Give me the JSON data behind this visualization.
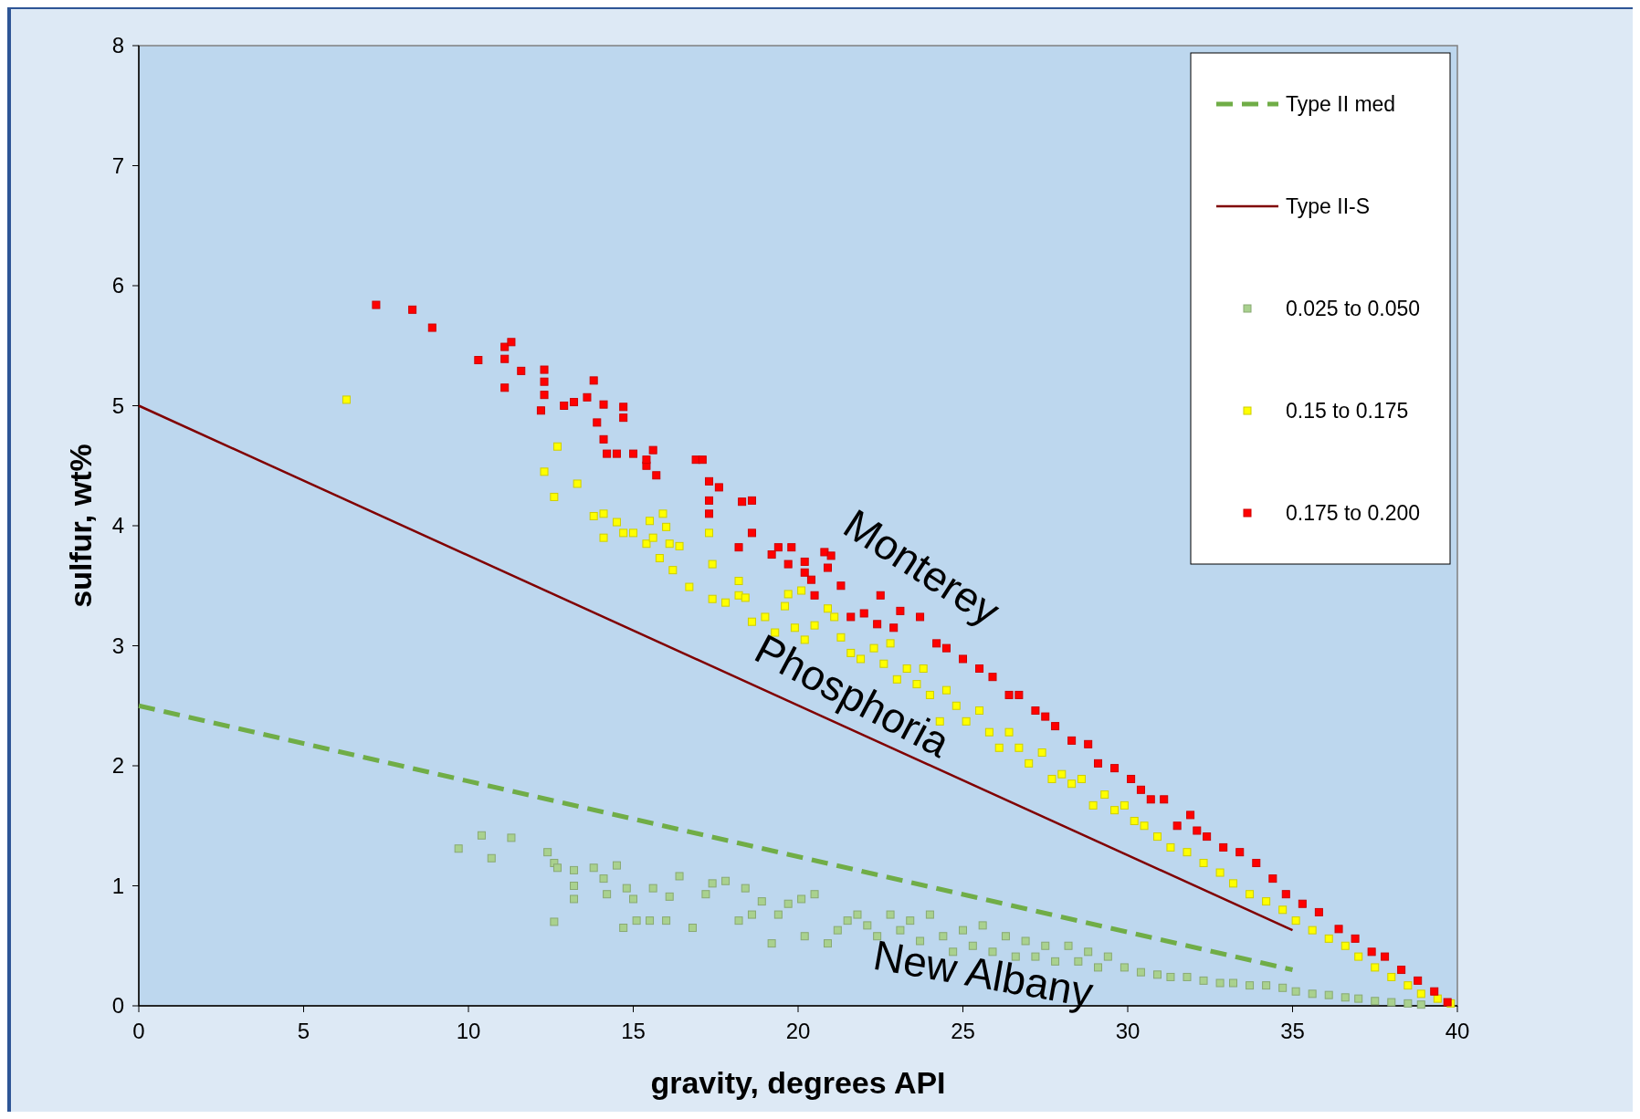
{
  "chart_data": {
    "type": "scatter",
    "xlabel": "gravity, degrees API",
    "ylabel": "sulfur, wt%",
    "xlim": [
      0,
      40
    ],
    "ylim": [
      0,
      8
    ],
    "xticks": [
      0,
      5,
      10,
      15,
      20,
      25,
      30,
      35,
      40
    ],
    "yticks": [
      0,
      1,
      2,
      3,
      4,
      5,
      6,
      7,
      8
    ],
    "grid": false,
    "legend": "top right",
    "series": [
      {
        "name": "Type II med",
        "type": "line",
        "line_style": "dashed",
        "color": "#70ad47",
        "x": [
          0,
          35
        ],
        "values": [
          2.5,
          0.3
        ]
      },
      {
        "name": "Type II-S",
        "type": "line",
        "line_style": "solid",
        "color": "#800000",
        "x": [
          0,
          35
        ],
        "values": [
          5,
          0.63
        ]
      },
      {
        "name": "0.025 to 0.050",
        "marker": "square",
        "color": "#a9d18e",
        "x": [
          9.7,
          10.4,
          10.7,
          11.3,
          12.4,
          12.6,
          12.7,
          12.6,
          13.2,
          13.2,
          13.2,
          13.8,
          14.1,
          14.2,
          14.5,
          14.7,
          14.8,
          15.0,
          15.1,
          15.5,
          15.6,
          16.0,
          16.1,
          16.4,
          16.8,
          17.2,
          17.4,
          17.8,
          18.2,
          18.4,
          18.6,
          18.9,
          19.2,
          19.4,
          19.7,
          20.1,
          20.5,
          20.2,
          20.9,
          21.2,
          21.5,
          21.8,
          22.1,
          22.4,
          22.8,
          23.1,
          23.4,
          23.7,
          24.0,
          24.4,
          24.7,
          25.0,
          25.3,
          25.6,
          25.9,
          26.3,
          26.6,
          26.9,
          27.2,
          27.5,
          27.8,
          28.2,
          28.5,
          28.8,
          29.1,
          29.4,
          29.9,
          30.4,
          30.9,
          31.3,
          31.8,
          32.3,
          32.8,
          33.2,
          33.7,
          34.2,
          34.7,
          35.1,
          35.6,
          36.1,
          36.6,
          37.0,
          37.5,
          38.0,
          38.5,
          38.9
        ],
        "values": [
          1.31,
          1.42,
          1.23,
          1.4,
          1.28,
          1.19,
          1.15,
          0.7,
          1.13,
          1.0,
          0.89,
          1.15,
          1.06,
          0.93,
          1.17,
          0.65,
          0.98,
          0.89,
          0.71,
          0.71,
          0.98,
          0.71,
          0.91,
          1.08,
          0.65,
          0.93,
          1.02,
          1.04,
          0.71,
          0.98,
          0.76,
          0.87,
          0.52,
          0.76,
          0.85,
          0.89,
          0.93,
          0.58,
          0.52,
          0.63,
          0.71,
          0.76,
          0.67,
          0.58,
          0.76,
          0.63,
          0.71,
          0.54,
          0.76,
          0.58,
          0.45,
          0.63,
          0.5,
          0.67,
          0.45,
          0.58,
          0.41,
          0.54,
          0.41,
          0.5,
          0.37,
          0.5,
          0.37,
          0.45,
          0.32,
          0.41,
          0.32,
          0.28,
          0.26,
          0.24,
          0.24,
          0.21,
          0.19,
          0.19,
          0.17,
          0.17,
          0.15,
          0.12,
          0.1,
          0.09,
          0.07,
          0.06,
          0.04,
          0.03,
          0.02,
          0.01
        ]
      },
      {
        "name": "0.15 to 0.175",
        "marker": "square",
        "color": "#ffff00",
        "x": [
          6.3,
          12.3,
          12.7,
          12.6,
          13.3,
          13.8,
          14.1,
          14.1,
          14.5,
          14.7,
          15.0,
          15.4,
          15.5,
          15.6,
          15.9,
          16.0,
          16.1,
          15.8,
          16.2,
          16.4,
          16.7,
          17.3,
          17.4,
          17.4,
          17.8,
          18.2,
          18.2,
          18.4,
          18.6,
          19.0,
          19.3,
          19.6,
          19.7,
          20.1,
          19.9,
          20.2,
          20.5,
          20.9,
          21.1,
          21.3,
          21.6,
          21.9,
          22.3,
          22.6,
          22.8,
          23.0,
          23.3,
          23.6,
          23.8,
          24.0,
          24.3,
          24.5,
          24.8,
          25.1,
          25.5,
          25.8,
          26.1,
          26.4,
          26.7,
          27.0,
          27.4,
          27.7,
          28.0,
          28.3,
          28.6,
          28.95,
          29.3,
          29.6,
          29.9,
          30.2,
          30.5,
          30.9,
          31.3,
          31.8,
          32.3,
          32.8,
          33.2,
          33.7,
          34.2,
          34.7,
          35.1,
          35.6,
          36.1,
          36.6,
          37.0,
          37.5,
          38.0,
          38.5,
          38.9,
          39.4,
          39.8
        ],
        "values": [
          5.05,
          4.45,
          4.66,
          4.24,
          4.35,
          4.08,
          4.1,
          3.9,
          4.03,
          3.94,
          3.94,
          3.85,
          4.04,
          3.9,
          4.1,
          3.99,
          3.85,
          3.73,
          3.63,
          3.83,
          3.49,
          3.94,
          3.68,
          3.39,
          3.36,
          3.54,
          3.42,
          3.4,
          3.2,
          3.24,
          3.11,
          3.33,
          3.43,
          3.46,
          3.15,
          3.05,
          3.17,
          3.31,
          3.24,
          3.07,
          2.94,
          2.89,
          2.98,
          2.85,
          3.02,
          2.72,
          2.81,
          2.68,
          2.81,
          2.59,
          2.37,
          2.63,
          2.5,
          2.37,
          2.46,
          2.28,
          2.15,
          2.28,
          2.15,
          2.02,
          2.11,
          1.89,
          1.93,
          1.85,
          1.89,
          1.67,
          1.76,
          1.63,
          1.67,
          1.54,
          1.5,
          1.41,
          1.32,
          1.28,
          1.19,
          1.11,
          1.02,
          0.93,
          0.87,
          0.8,
          0.71,
          0.63,
          0.56,
          0.5,
          0.41,
          0.32,
          0.24,
          0.17,
          0.1,
          0.06,
          0.02
        ]
      },
      {
        "name": "0.175 to 0.200",
        "marker": "square",
        "color": "#ff0000",
        "x": [
          7.2,
          8.3,
          8.9,
          10.3,
          11.1,
          11.3,
          11.1,
          11.1,
          11.6,
          12.3,
          12.3,
          12.3,
          12.2,
          12.9,
          13.2,
          13.6,
          13.8,
          14.1,
          13.9,
          14.1,
          14.2,
          14.5,
          14.7,
          14.7,
          15.0,
          15.4,
          15.4,
          15.6,
          15.7,
          16.9,
          17.1,
          17.3,
          17.6,
          17.3,
          17.3,
          18.3,
          18.6,
          18.6,
          18.2,
          19.2,
          19.4,
          19.8,
          19.7,
          20.2,
          20.2,
          20.4,
          20.8,
          21.0,
          20.9,
          20.5,
          21.3,
          21.6,
          22.0,
          22.4,
          22.5,
          22.9,
          23.1,
          23.7,
          24.2,
          24.5,
          25.0,
          25.5,
          25.9,
          26.4,
          26.7,
          27.2,
          27.5,
          27.8,
          28.3,
          28.8,
          29.1,
          29.6,
          30.1,
          30.4,
          30.7,
          31.1,
          31.5,
          31.9,
          32.1,
          32.4,
          32.9,
          33.4,
          33.9,
          34.4,
          34.8,
          35.3,
          35.8,
          36.4,
          36.9,
          37.4,
          37.8,
          38.3,
          38.8,
          39.3,
          39.7
        ],
        "values": [
          5.84,
          5.8,
          5.65,
          5.38,
          5.49,
          5.53,
          5.39,
          5.15,
          5.29,
          5.3,
          5.2,
          5.09,
          4.96,
          5.0,
          5.03,
          5.07,
          5.21,
          5.01,
          4.86,
          4.72,
          4.6,
          4.6,
          4.99,
          4.9,
          4.6,
          4.5,
          4.55,
          4.63,
          4.42,
          4.55,
          4.55,
          4.37,
          4.32,
          4.21,
          4.1,
          4.2,
          4.21,
          3.94,
          3.82,
          3.76,
          3.82,
          3.82,
          3.68,
          3.7,
          3.61,
          3.55,
          3.78,
          3.75,
          3.65,
          3.42,
          3.5,
          3.24,
          3.27,
          3.18,
          3.42,
          3.15,
          3.29,
          3.24,
          3.02,
          2.98,
          2.89,
          2.81,
          2.74,
          2.59,
          2.59,
          2.46,
          2.41,
          2.33,
          2.21,
          2.18,
          2.02,
          1.98,
          1.89,
          1.8,
          1.72,
          1.72,
          1.5,
          1.59,
          1.46,
          1.41,
          1.32,
          1.28,
          1.19,
          1.06,
          0.93,
          0.85,
          0.78,
          0.64,
          0.56,
          0.45,
          0.41,
          0.3,
          0.21,
          0.12,
          0.03
        ]
      }
    ],
    "annotations": [
      "Monterey",
      "Phosphoria",
      "New Albany"
    ]
  }
}
